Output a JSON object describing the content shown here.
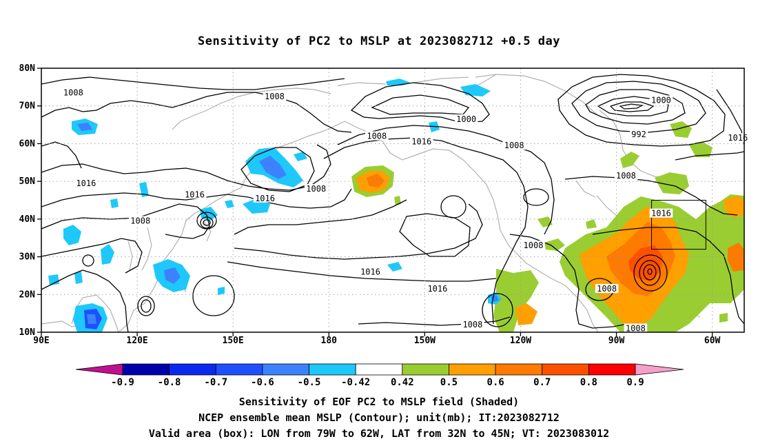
{
  "title": "Sensitivity of PC2 to MSLP at 2023082712 +0.5 day",
  "lat_labels": [
    "80N",
    "70N",
    "60N",
    "50N",
    "40N",
    "30N",
    "20N",
    "10N"
  ],
  "lon_labels": [
    "90E",
    "120E",
    "150E",
    "180",
    "150W",
    "120W",
    "90W",
    "60W"
  ],
  "contour_labels": [
    {
      "text": "1008",
      "lon": 100,
      "lat": 73.5
    },
    {
      "text": "1008",
      "lon": 163,
      "lat": 72.5
    },
    {
      "text": "1000",
      "lon": -137,
      "lat": 66.5
    },
    {
      "text": "1008",
      "lon": -165,
      "lat": 62
    },
    {
      "text": "1016",
      "lon": -151,
      "lat": 60.5
    },
    {
      "text": "1008",
      "lon": -122,
      "lat": 59.5
    },
    {
      "text": "1000",
      "lon": -76,
      "lat": 71.5
    },
    {
      "text": "992",
      "lon": -83,
      "lat": 62.5
    },
    {
      "text": "1016",
      "lon": -52,
      "lat": 61.5
    },
    {
      "text": "1008",
      "lon": -87,
      "lat": 51.5
    },
    {
      "text": "1016",
      "lon": 104,
      "lat": 49.5
    },
    {
      "text": "1016",
      "lon": 138,
      "lat": 46.5
    },
    {
      "text": "1008",
      "lon": 176,
      "lat": 48
    },
    {
      "text": "1016",
      "lon": 160,
      "lat": 45.5
    },
    {
      "text": "1008",
      "lon": 121,
      "lat": 39.5
    },
    {
      "text": "1016",
      "lon": -76,
      "lat": 41.5
    },
    {
      "text": "1008",
      "lon": -116,
      "lat": 33
    },
    {
      "text": "1016",
      "lon": -167,
      "lat": 26
    },
    {
      "text": "1016",
      "lon": -146,
      "lat": 21.5
    },
    {
      "text": "1008",
      "lon": -93,
      "lat": 21.5
    },
    {
      "text": "1008",
      "lon": -135,
      "lat": 12
    },
    {
      "text": "1008",
      "lon": -84,
      "lat": 11
    }
  ],
  "colorbar": {
    "labels": [
      "-0.9",
      "-0.8",
      "-0.7",
      "-0.6",
      "-0.5",
      "-0.42",
      "0.42",
      "0.5",
      "0.6",
      "0.7",
      "0.8",
      "0.9"
    ],
    "colors": [
      "#0000aa",
      "#0a28f0",
      "#1e50ff",
      "#3c82ff",
      "#1fc8fa",
      "#ffffff",
      "#9acd32",
      "#ff9f00",
      "#ff7a00",
      "#ff5000",
      "#ff0000"
    ],
    "low_end_color": "#c01090",
    "high_end_color": "#f5a0c8"
  },
  "valid_box": {
    "lon_min": -79,
    "lon_max": -62,
    "lat_min": 32,
    "lat_max": 45
  },
  "captions": [
    "Sensitivity of EOF PC2 to MSLP field (Shaded)",
    "NCEP ensemble mean MSLP (Contour); unit(mb); IT:2023082712",
    "Valid area (box): LON from 79W to 62W, LAT from 32N to 45N; VT: 2023083012"
  ]
}
